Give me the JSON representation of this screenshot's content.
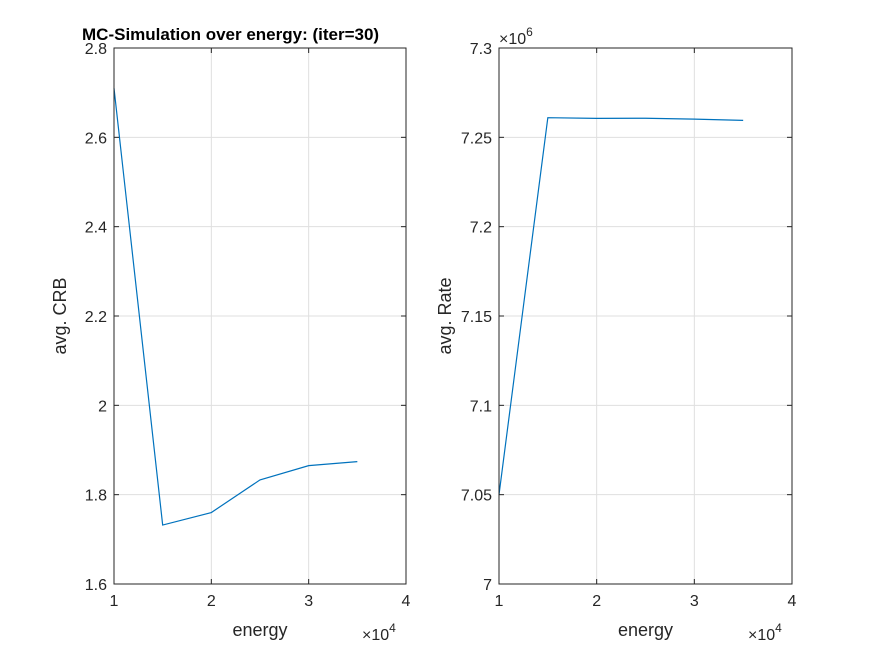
{
  "chart_data": [
    {
      "type": "line",
      "title": "MC-Simulation over energy: (iter=30)",
      "xlabel": "energy",
      "ylabel": "avg. CRB",
      "x_exponent_base": "×10",
      "x_exponent_power": "4",
      "y_exponent_base": "",
      "y_exponent_power": "",
      "xlim": [
        10000,
        40000
      ],
      "ylim": [
        1.6,
        2.8
      ],
      "xticks": [
        10000,
        20000,
        30000,
        40000
      ],
      "xtick_labels": [
        "1",
        "2",
        "3",
        "4"
      ],
      "yticks": [
        1.6,
        1.8,
        2.0,
        2.2,
        2.4,
        2.6,
        2.8
      ],
      "ytick_labels": [
        "1.6",
        "1.8",
        "2",
        "2.2",
        "2.4",
        "2.6",
        "2.8"
      ],
      "grid": true,
      "series": [
        {
          "x": [
            10000,
            15000,
            20000,
            25000,
            30000,
            35000
          ],
          "y": [
            2.71,
            1.732,
            1.76,
            1.833,
            1.865,
            1.874
          ],
          "color": "#0072BD"
        }
      ]
    },
    {
      "type": "line",
      "title": "",
      "xlabel": "energy",
      "ylabel": "avg. Rate",
      "x_exponent_base": "×10",
      "x_exponent_power": "4",
      "y_exponent_base": "×10",
      "y_exponent_power": "6",
      "xlim": [
        10000,
        40000
      ],
      "ylim": [
        7000000,
        7300000
      ],
      "xticks": [
        10000,
        20000,
        30000,
        40000
      ],
      "xtick_labels": [
        "1",
        "2",
        "3",
        "4"
      ],
      "yticks": [
        7000000,
        7050000,
        7100000,
        7150000,
        7200000,
        7250000,
        7300000
      ],
      "ytick_labels": [
        "7",
        "7.05",
        "7.1",
        "7.15",
        "7.2",
        "7.25",
        "7.3"
      ],
      "grid": true,
      "series": [
        {
          "x": [
            10000,
            15000,
            20000,
            25000,
            30000,
            35000
          ],
          "y": [
            7050000,
            7261000,
            7260600,
            7260700,
            7260200,
            7259500
          ],
          "color": "#0072BD"
        }
      ]
    }
  ]
}
